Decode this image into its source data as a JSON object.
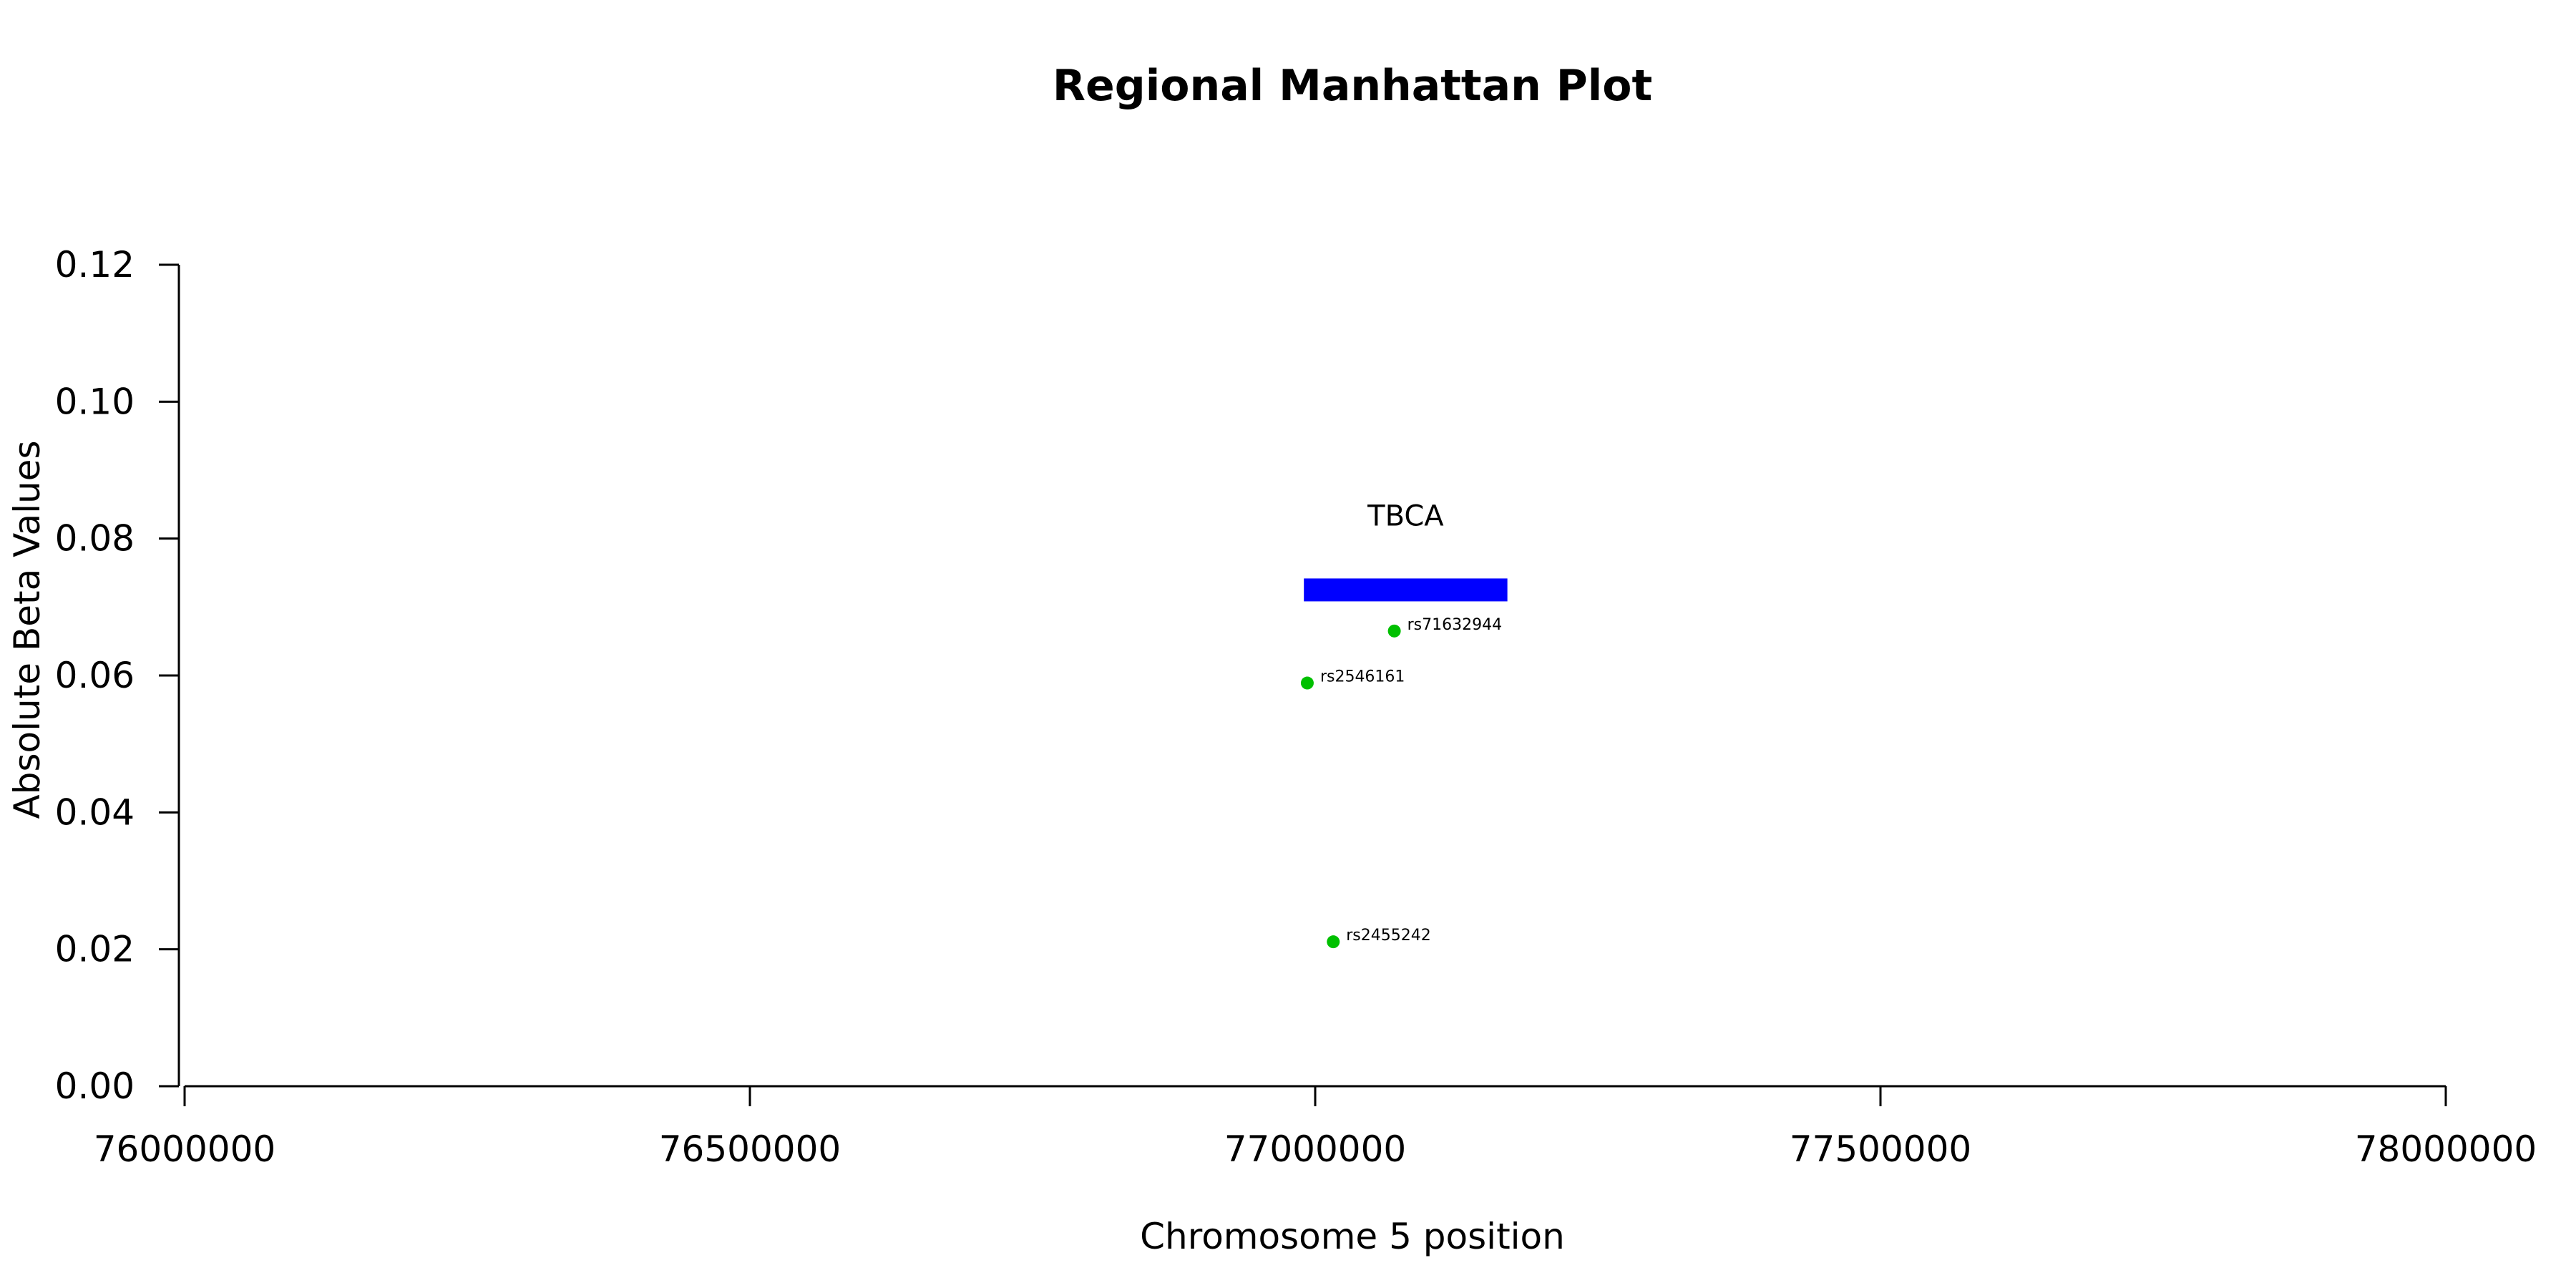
{
  "chart_data": {
    "type": "scatter",
    "title": "Regional Manhattan Plot",
    "xlabel": "Chromosome 5 position",
    "ylabel": "Absolute Beta Values",
    "xlim": [
      76000000,
      78000000
    ],
    "ylim": [
      0,
      0.12
    ],
    "xticks": [
      76000000,
      76500000,
      77000000,
      77500000,
      78000000
    ],
    "xtick_labels": [
      "76000000",
      "76500000",
      "77000000",
      "77500000",
      "78000000"
    ],
    "yticks": [
      0,
      0.02,
      0.04,
      0.06,
      0.08,
      0.1,
      0.12
    ],
    "ytick_labels": [
      "0.00",
      "0.02",
      "0.04",
      "0.06",
      "0.08",
      "0.10",
      "0.12"
    ],
    "grid": false,
    "point_color": "#00c000",
    "points": [
      {
        "label": "rs71632944",
        "x": 77070000,
        "y": 0.0665
      },
      {
        "label": "rs2546161",
        "x": 76993000,
        "y": 0.0589
      },
      {
        "label": "rs2455242",
        "x": 77016000,
        "y": 0.0211
      }
    ],
    "genes": [
      {
        "name": "TBCA",
        "start": 76990000,
        "end": 77170000,
        "y": 0.0725,
        "color": "#0000ff"
      }
    ]
  }
}
